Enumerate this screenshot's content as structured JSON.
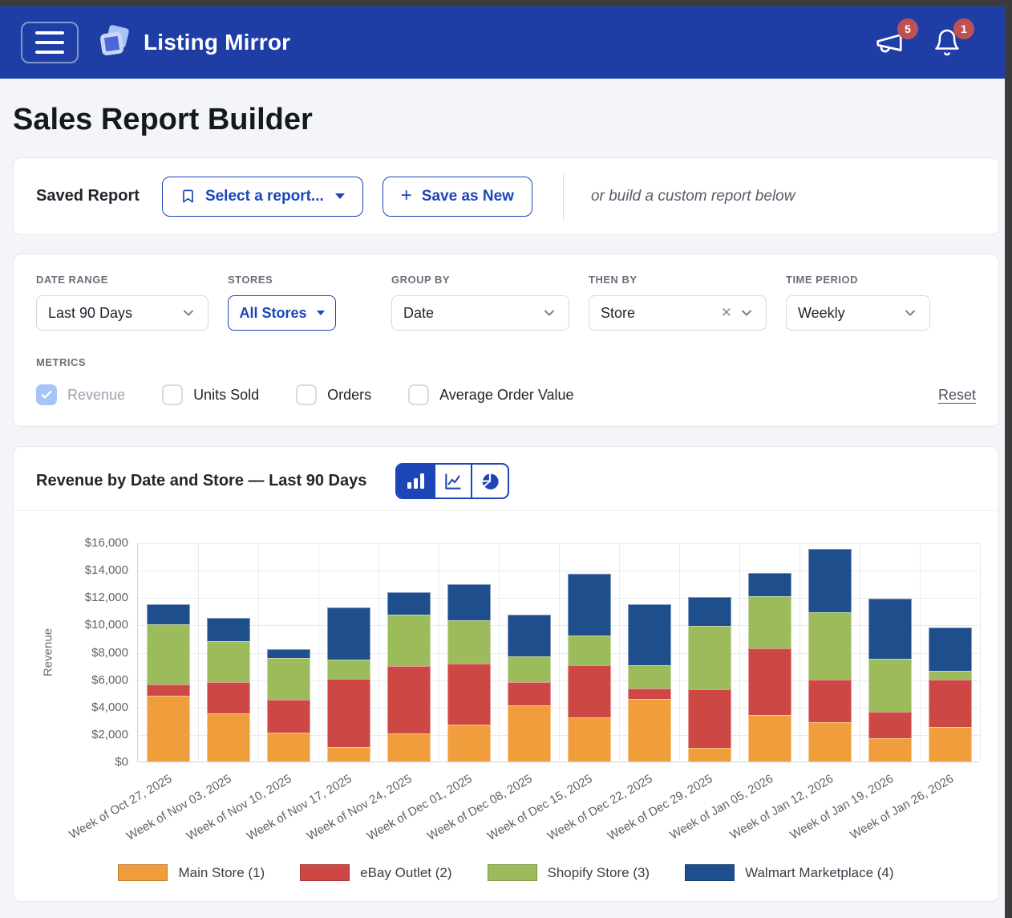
{
  "header": {
    "brand": "Listing Mirror",
    "announcements_badge": "5",
    "notifications_badge": "1"
  },
  "page": {
    "title": "Sales Report Builder"
  },
  "saved_report": {
    "label": "Saved Report",
    "select_button": "Select a report...",
    "save_button": "Save as New",
    "hint": "or build a custom report below"
  },
  "filters": {
    "date_range": {
      "label": "DATE RANGE",
      "value": "Last 90 Days"
    },
    "stores": {
      "label": "STORES",
      "value": "All Stores"
    },
    "group_by": {
      "label": "GROUP BY",
      "value": "Date"
    },
    "then_by": {
      "label": "THEN BY",
      "value": "Store"
    },
    "time_period": {
      "label": "TIME PERIOD",
      "value": "Weekly"
    },
    "metrics": {
      "label": "METRICS",
      "options": [
        {
          "label": "Revenue",
          "checked": true
        },
        {
          "label": "Units Sold",
          "checked": false
        },
        {
          "label": "Orders",
          "checked": false
        },
        {
          "label": "Average Order Value",
          "checked": false
        }
      ]
    },
    "reset_label": "Reset"
  },
  "icons": {
    "menu": "hamburger-icon",
    "brand": "logo-icon",
    "announcements": "megaphone-icon",
    "notifications": "bell-icon",
    "select_report": "bookmark-icon",
    "save_new": "plus-icon",
    "chart_views": [
      "bar-chart-icon",
      "line-chart-icon",
      "pie-chart-icon"
    ]
  },
  "colors": {
    "header_bg": "#1E3EA6",
    "accent_blue": "#1C45B8",
    "badge_red": "#BD5254"
  },
  "chart_data": {
    "type": "bar",
    "stacked": true,
    "title": "Revenue by Date and Store — Last 90 Days",
    "ylabel": "Revenue",
    "ylim": [
      0,
      16000
    ],
    "ytick_step": 2000,
    "ytick_labels": [
      "$0",
      "$2,000",
      "$4,000",
      "$6,000",
      "$8,000",
      "$10,000",
      "$12,000",
      "$14,000",
      "$16,000"
    ],
    "grid": true,
    "legend_position": "bottom",
    "categories": [
      "Week of Oct 27, 2025",
      "Week of Nov 03, 2025",
      "Week of Nov 10, 2025",
      "Week of Nov 17, 2025",
      "Week of Nov 24, 2025",
      "Week of Dec 01, 2025",
      "Week of Dec 08, 2025",
      "Week of Dec 15, 2025",
      "Week of Dec 22, 2025",
      "Week of Dec 29, 2025",
      "Week of Jan 05, 2026",
      "Week of Jan 12, 2026",
      "Week of Jan 19, 2026",
      "Week of Jan 26, 2026"
    ],
    "series": [
      {
        "name": "Main Store (1)",
        "color": "#F09D3B",
        "values": [
          4800,
          3500,
          2100,
          1050,
          2050,
          2700,
          4100,
          3250,
          4550,
          1000,
          3400,
          2850,
          1700,
          2550
        ]
      },
      {
        "name": "eBay Outlet (2)",
        "color": "#CD4744",
        "values": [
          850,
          2300,
          2400,
          5000,
          4900,
          4450,
          1700,
          3800,
          800,
          4300,
          4850,
          3100,
          1950,
          3450
        ]
      },
      {
        "name": "Shopify Store (3)",
        "color": "#9CBB5B",
        "values": [
          4350,
          3000,
          3050,
          1400,
          3750,
          3150,
          1900,
          2150,
          1700,
          4600,
          3800,
          4950,
          3850,
          600
        ]
      },
      {
        "name": "Walmart Marketplace (4)",
        "color": "#1F4E8D",
        "values": [
          1500,
          1700,
          650,
          3800,
          1650,
          2650,
          3050,
          4500,
          4450,
          2100,
          1700,
          4650,
          4400,
          3200
        ]
      }
    ]
  }
}
